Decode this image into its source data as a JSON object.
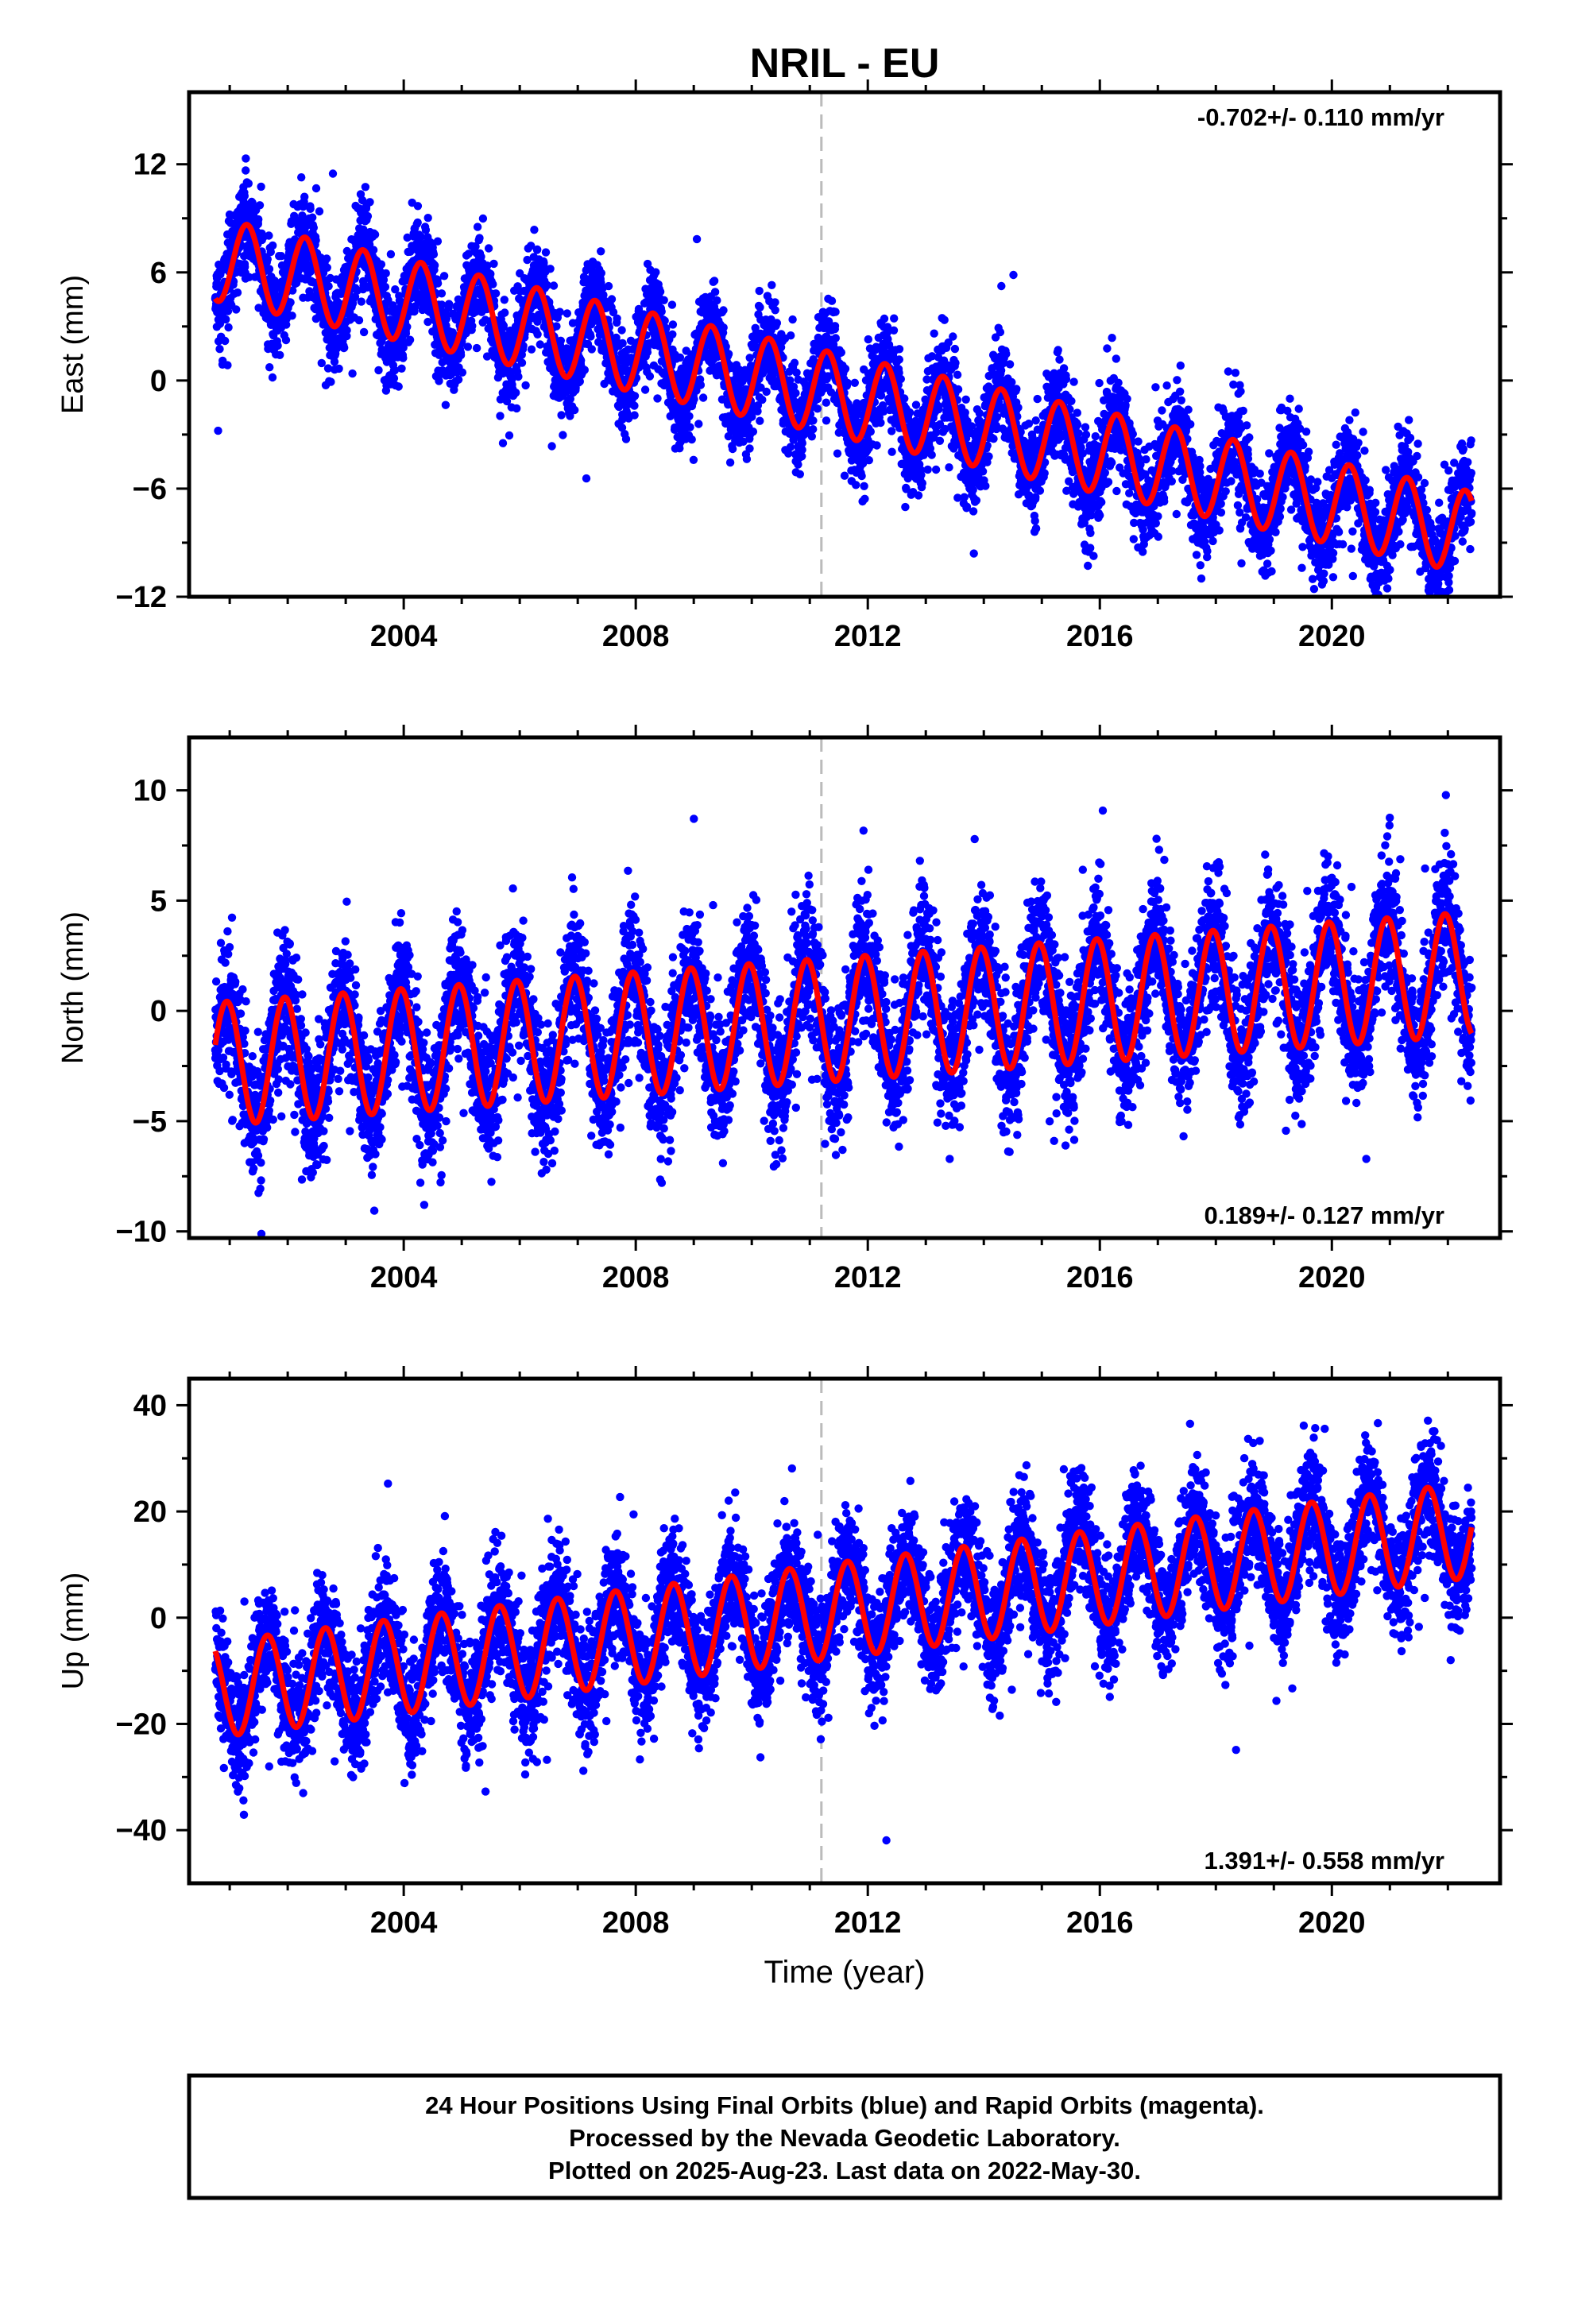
{
  "figure": {
    "title": "NRIL - EU",
    "xlabel": "Time (year)",
    "caption": [
      "24 Hour Positions Using Final Orbits (blue) and Rapid Orbits (magenta).",
      "Processed by the Nevada Geodetic Laboratory.",
      "Plotted on 2025-Aug-23. Last data on 2022-May-30."
    ]
  },
  "colors": {
    "points": "#0000ff",
    "model": "#ff0000",
    "event_line": "#bbbbbb",
    "frame": "#000000"
  },
  "chart_data": [
    {
      "type": "scatter",
      "ylabel": "East (mm)",
      "rate_label": "-0.702+/- 0.110 mm/yr",
      "rate_position": "top-right",
      "xlim": [
        2000.3,
        2022.9
      ],
      "ylim": [
        -12,
        16
      ],
      "xticks": [
        2004,
        2008,
        2012,
        2016,
        2020
      ],
      "yticks": [
        -12,
        -6,
        0,
        6,
        12
      ],
      "event_line_x": 2011.2,
      "data_range": [
        2000.75,
        2022.41
      ],
      "model": {
        "offset_at_2000_8": 6.7,
        "trend_mm_per_yr": -0.702,
        "annual_amplitude": 2.3,
        "peak_phase": 0.3,
        "noise_sd": 1.3
      },
      "series": [
        {
          "name": "Final Orbits",
          "color": "#0000ff",
          "x": [
            2001.0,
            2002.0,
            2003.0,
            2004.0,
            2005.0,
            2006.0,
            2007.0,
            2008.0,
            2009.0,
            2010.0,
            2011.0,
            2012.0,
            2013.0,
            2014.0,
            2015.0,
            2016.0,
            2017.0,
            2018.0,
            2019.0,
            2020.0,
            2021.0,
            2022.0
          ],
          "y": [
            8.5,
            8.0,
            7.2,
            6.4,
            5.8,
            5.1,
            4.4,
            3.7,
            3.0,
            2.3,
            1.6,
            1.0,
            0.3,
            -0.4,
            -1.1,
            -1.8,
            -2.5,
            -3.2,
            -3.9,
            -4.6,
            -5.3,
            -6.0
          ]
        }
      ]
    },
    {
      "type": "scatter",
      "ylabel": "North (mm)",
      "rate_label": "0.189+/- 0.127 mm/yr",
      "rate_position": "bottom-right",
      "xlim": [
        2000.3,
        2022.9
      ],
      "ylim": [
        -10.3,
        12.4
      ],
      "xticks": [
        2004,
        2008,
        2012,
        2016,
        2020
      ],
      "yticks": [
        -10,
        -5,
        0,
        5,
        10
      ],
      "event_line_x": 2011.2,
      "data_range": [
        2000.75,
        2022.41
      ],
      "model": {
        "offset_at_2000_8": -2.4,
        "trend_mm_per_yr": 0.189,
        "annual_amplitude": 2.8,
        "peak_phase": 0.95,
        "noise_sd": 1.5
      },
      "series": [
        {
          "name": "Final Orbits",
          "color": "#0000ff",
          "x": [
            2001.0,
            2002.0,
            2003.0,
            2004.0,
            2005.0,
            2006.0,
            2007.0,
            2008.0,
            2009.0,
            2010.0,
            2011.0,
            2012.0,
            2013.0,
            2014.0,
            2015.0,
            2016.0,
            2017.0,
            2018.0,
            2019.0,
            2020.0,
            2021.0,
            2022.0
          ],
          "y": [
            -1.5,
            -1.2,
            -1.0,
            -0.8,
            -0.6,
            -0.4,
            -0.2,
            0.0,
            0.2,
            0.4,
            0.6,
            0.8,
            1.0,
            1.2,
            1.4,
            1.6,
            1.8,
            2.0,
            2.2,
            2.4,
            2.6,
            2.8
          ]
        }
      ]
    },
    {
      "type": "scatter",
      "ylabel": "Up (mm)",
      "rate_label": "1.391+/- 0.558 mm/yr",
      "rate_position": "bottom-right",
      "xlim": [
        2000.3,
        2022.9
      ],
      "ylim": [
        -50,
        45
      ],
      "xticks": [
        2004,
        2008,
        2012,
        2016,
        2020
      ],
      "yticks": [
        -40,
        -20,
        0,
        20,
        40
      ],
      "event_line_x": 2011.2,
      "data_range": [
        2000.75,
        2022.41
      ],
      "model": {
        "offset_at_2000_8": -13.5,
        "trend_mm_per_yr": 1.391,
        "annual_amplitude": 9.0,
        "peak_phase": 0.65,
        "noise_sd": 5.5
      },
      "series": [
        {
          "name": "Final Orbits",
          "color": "#0000ff",
          "x": [
            2001.0,
            2002.0,
            2003.0,
            2004.0,
            2005.0,
            2006.0,
            2007.0,
            2008.0,
            2009.0,
            2010.0,
            2011.0,
            2012.0,
            2013.0,
            2014.0,
            2015.0,
            2016.0,
            2017.0,
            2018.0,
            2019.0,
            2020.0,
            2021.0,
            2022.0
          ],
          "y": [
            -17,
            -15,
            -14,
            -12,
            -11,
            -9,
            -8,
            -6,
            -5,
            -4,
            -2,
            0,
            1,
            3,
            4,
            6,
            7,
            9,
            10,
            12,
            13,
            15
          ]
        }
      ]
    }
  ]
}
